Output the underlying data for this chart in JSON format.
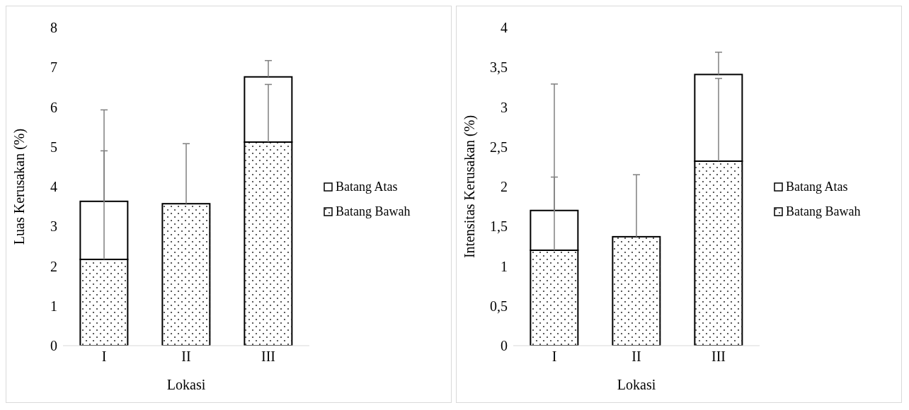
{
  "chart_data": [
    {
      "type": "bar",
      "stacked": true,
      "xlabel": "Lokasi",
      "ylabel": "Luas Kerusakan (%)",
      "categories": [
        "I",
        "II",
        "III"
      ],
      "ylim": [
        0,
        8
      ],
      "yticks": [
        0,
        1,
        2,
        3,
        4,
        5,
        6,
        7,
        8
      ],
      "legend": "right",
      "grid": false,
      "series": [
        {
          "name": "Batang Bawah",
          "color": "#ffffff",
          "values": [
            2.17,
            3.57,
            5.12
          ],
          "errors": [
            [
              2.17,
              4.9
            ],
            [
              3.57,
              5.08
            ],
            [
              5.12,
              6.57
            ]
          ]
        },
        {
          "name": "Batang Atas",
          "color": "#ffffff",
          "values": [
            1.46,
            0,
            1.64
          ],
          "errors": [
            [
              3.63,
              5.93
            ],
            null,
            [
              6.76,
              7.17
            ]
          ]
        }
      ]
    },
    {
      "type": "bar",
      "stacked": true,
      "xlabel": "Lokasi",
      "ylabel": "Intensitas Kerusakan (%)",
      "categories": [
        "I",
        "II",
        "III"
      ],
      "ylim": [
        0,
        4
      ],
      "yticks": [
        0,
        {
          "value": 0.5,
          "label": "0,5"
        },
        1,
        {
          "value": 1.5,
          "label": "1,5"
        },
        2,
        {
          "value": 2.5,
          "label": "2,5"
        },
        3,
        {
          "value": 3.5,
          "label": "3,5"
        },
        4
      ],
      "legend": "right",
      "grid": false,
      "series": [
        {
          "name": "Batang Bawah",
          "color": "#ffffff",
          "values": [
            1.2,
            1.37,
            2.32
          ],
          "errors": [
            [
              1.2,
              2.12
            ],
            [
              1.37,
              2.15
            ],
            [
              2.32,
              3.36
            ]
          ]
        },
        {
          "name": "Batang Atas",
          "color": "#ffffff",
          "values": [
            0.5,
            0,
            1.09
          ],
          "errors": [
            [
              1.7,
              3.29
            ],
            null,
            [
              3.41,
              3.69
            ]
          ]
        }
      ]
    }
  ]
}
